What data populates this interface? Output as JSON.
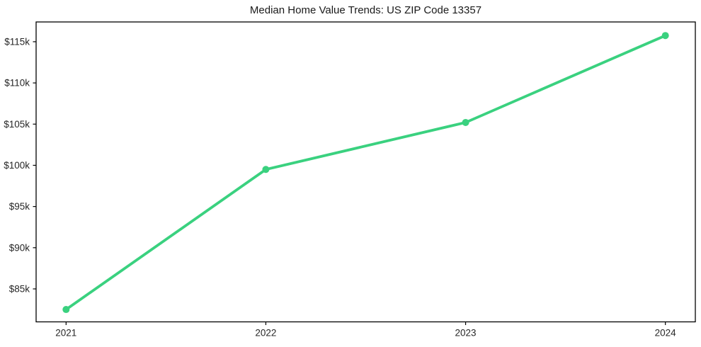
{
  "chart_data": {
    "type": "line",
    "title": "Median Home Value Trends: US ZIP Code 13357",
    "x_axis": {
      "label": "",
      "tick_labels": [
        "2021",
        "2022",
        "2023",
        "2024"
      ]
    },
    "y_axis": {
      "label": "",
      "ticks_usd": [
        85000,
        90000,
        95000,
        100000,
        105000,
        110000,
        115000
      ],
      "tick_labels": [
        "$85k",
        "$90k",
        "$95k",
        "$100k",
        "$105k",
        "$110k",
        "$115k"
      ],
      "range_usd": [
        81000,
        117400
      ]
    },
    "series": [
      {
        "name": "Median home value",
        "values_usd": [
          82500,
          99500,
          105200,
          115750
        ]
      }
    ],
    "style": {
      "line_color": "#3ad17f",
      "marker": "circle",
      "grid": false,
      "legend": "none",
      "spine_color": "#000000"
    }
  }
}
